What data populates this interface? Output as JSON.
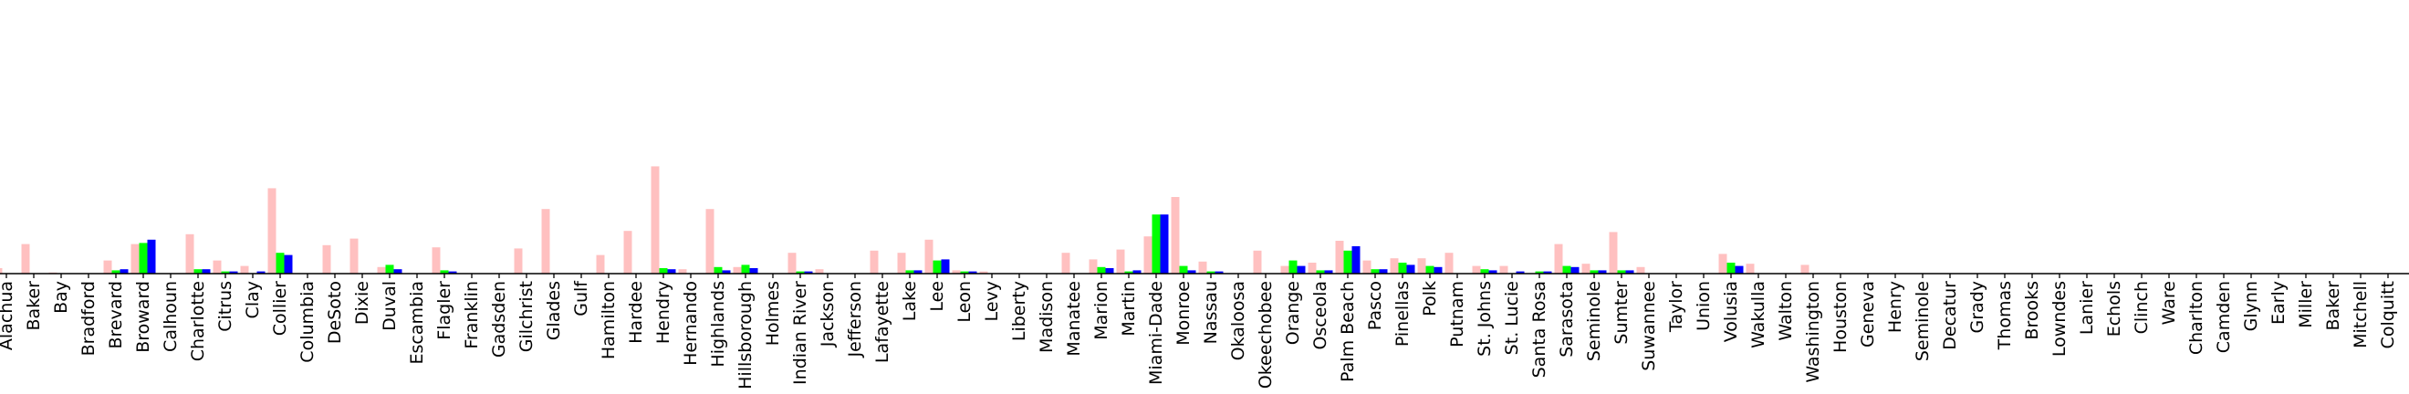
{
  "chart_data": {
    "type": "bar",
    "title": "",
    "xlabel": "",
    "ylabel": "",
    "ylim": [
      0,
      1.0
    ],
    "grid": false,
    "legend": "none",
    "categories": [
      "Alachua",
      "Baker",
      "Bay",
      "Bradford",
      "Brevard",
      "Broward",
      "Calhoun",
      "Charlotte",
      "Citrus",
      "Clay",
      "Collier",
      "Columbia",
      "DeSoto",
      "Dixie",
      "Duval",
      "Escambia",
      "Flagler",
      "Franklin",
      "Gadsden",
      "Gilchrist",
      "Glades",
      "Gulf",
      "Hamilton",
      "Hardee",
      "Hendry",
      "Hernando",
      "Highlands",
      "Hillsborough",
      "Holmes",
      "Indian River",
      "Jackson",
      "Jefferson",
      "Lafayette",
      "Lake",
      "Lee",
      "Leon",
      "Levy",
      "Liberty",
      "Madison",
      "Manatee",
      "Marion",
      "Martin",
      "Miami-Dade",
      "Monroe",
      "Nassau",
      "Okaloosa",
      "Okeechobee",
      "Orange",
      "Osceola",
      "Palm Beach",
      "Pasco",
      "Pinellas",
      "Polk",
      "Putnam",
      "St. Johns",
      "St. Lucie",
      "Santa Rosa",
      "Sarasota",
      "Seminole",
      "Sumter",
      "Suwannee",
      "Taylor",
      "Union",
      "Volusia",
      "Wakulla",
      "Walton",
      "Washington",
      "Houston",
      "Geneva",
      "Henry",
      "Seminole",
      "Decatur",
      "Grady",
      "Thomas",
      "Brooks",
      "Lowndes",
      "Lanier",
      "Echols",
      "Clinch",
      "Ware",
      "Charlton",
      "Camden",
      "Glynn",
      "Early",
      "Miller",
      "Baker",
      "Mitchell",
      "Colquitt"
    ],
    "series": [
      {
        "color": "#ffc0c0",
        "values": [
          0.05,
          0.27,
          0.01,
          0,
          0.12,
          0.27,
          0,
          0.36,
          0.12,
          0.07,
          0.78,
          0,
          0.26,
          0.32,
          0.06,
          0,
          0.24,
          0,
          0,
          0.23,
          0.59,
          0,
          0.17,
          0.39,
          0.98,
          0.04,
          0.59,
          0.06,
          0,
          0.19,
          0.04,
          0,
          0.21,
          0.19,
          0.31,
          0.03,
          0.02,
          0,
          0,
          0.19,
          0.13,
          0.22,
          0.34,
          0.7,
          0.11,
          0,
          0.21,
          0.07,
          0.1,
          0.3,
          0.12,
          0.14,
          0.14,
          0.19,
          0.07,
          0.07,
          0,
          0.27,
          0.09,
          0.38,
          0.06,
          0,
          0,
          0.18,
          0.09,
          0,
          0.08,
          0,
          0,
          0,
          0,
          0,
          0,
          0,
          0,
          0,
          0,
          0,
          0,
          0,
          0,
          0,
          0,
          0,
          0,
          0,
          0,
          0
        ]
      },
      {
        "color": "#00ff00",
        "values": [
          0,
          0,
          0,
          0,
          0.03,
          0.28,
          0,
          0.04,
          0.02,
          0,
          0.19,
          0,
          0,
          0,
          0.08,
          0,
          0.03,
          0,
          0,
          0,
          0,
          0,
          0,
          0,
          0.05,
          0,
          0.06,
          0.08,
          0,
          0.02,
          0,
          0,
          0,
          0.03,
          0.12,
          0.02,
          0,
          0,
          0,
          0,
          0.06,
          0.02,
          0.54,
          0.07,
          0.02,
          0,
          0,
          0.12,
          0.03,
          0.21,
          0.04,
          0.1,
          0.07,
          0,
          0.04,
          0,
          0.02,
          0.07,
          0.03,
          0.03,
          0,
          0,
          0,
          0.1,
          0,
          0,
          0,
          0,
          0,
          0,
          0,
          0,
          0,
          0,
          0,
          0,
          0,
          0,
          0,
          0,
          0,
          0,
          0,
          0,
          0,
          0,
          0,
          0
        ]
      },
      {
        "color": "#0000ff",
        "values": [
          0,
          0,
          0,
          0,
          0.04,
          0.31,
          0,
          0.04,
          0.02,
          0.02,
          0.17,
          0,
          0,
          0,
          0.04,
          0,
          0.02,
          0,
          0,
          0,
          0,
          0,
          0,
          0,
          0.04,
          0,
          0.03,
          0.05,
          0,
          0.02,
          0,
          0,
          0,
          0.03,
          0.13,
          0.02,
          0,
          0,
          0,
          0,
          0.05,
          0.03,
          0.54,
          0.03,
          0.02,
          0,
          0,
          0.07,
          0.03,
          0.25,
          0.04,
          0.08,
          0.06,
          0,
          0.03,
          0.02,
          0.02,
          0.06,
          0.03,
          0.03,
          0,
          0,
          0,
          0.07,
          0,
          0,
          0,
          0,
          0,
          0,
          0,
          0,
          0,
          0,
          0,
          0,
          0,
          0,
          0,
          0,
          0,
          0,
          0,
          0,
          0,
          0,
          0,
          0
        ]
      }
    ]
  }
}
